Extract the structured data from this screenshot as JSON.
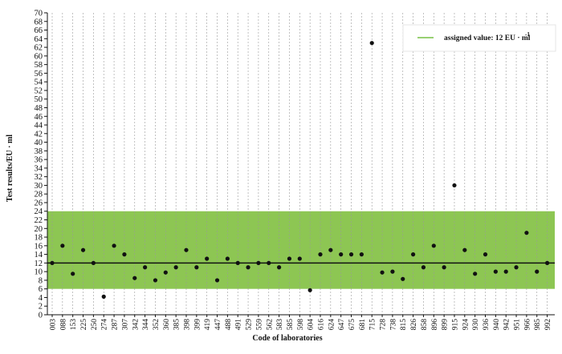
{
  "chart_data": {
    "type": "scatter",
    "title": "",
    "xlabel": "Code of laboratories",
    "ylabel": "Test results/EU · ml",
    "ylim": [
      0,
      70
    ],
    "ytick_step": 2,
    "grid": true,
    "legend_position": "top-right",
    "colors": {
      "band": "#8dc653",
      "assigned_line": "#111111",
      "legend_line": "#76c043",
      "points": "#111111",
      "grid": "#9a9a9a"
    },
    "assigned_value": 12,
    "band_range": [
      6,
      24
    ],
    "legend": {
      "label": "assigned value:  12 EU · ml"
    },
    "categories": [
      "003",
      "088",
      "153",
      "225",
      "250",
      "274",
      "287",
      "307",
      "342",
      "344",
      "352",
      "360",
      "385",
      "398",
      "399",
      "419",
      "447",
      "488",
      "491",
      "529",
      "559",
      "562",
      "583",
      "585",
      "598",
      "604",
      "616",
      "624",
      "647",
      "675",
      "681",
      "715",
      "728",
      "738",
      "815",
      "826",
      "858",
      "896",
      "899",
      "915",
      "924",
      "930",
      "936",
      "940",
      "942",
      "951",
      "966",
      "985",
      "992"
    ],
    "values": [
      12,
      16,
      9.5,
      15,
      12,
      4.2,
      16,
      14,
      8.5,
      11,
      8,
      9.8,
      11,
      15,
      11,
      13,
      8,
      13,
      12,
      11,
      12,
      12,
      11,
      13,
      13,
      5.7,
      14,
      15,
      14,
      14,
      14,
      63,
      9.8,
      10,
      8.3,
      14,
      11,
      16,
      11,
      30,
      15,
      9.5,
      14,
      10,
      10,
      11,
      19,
      10,
      12
    ]
  }
}
